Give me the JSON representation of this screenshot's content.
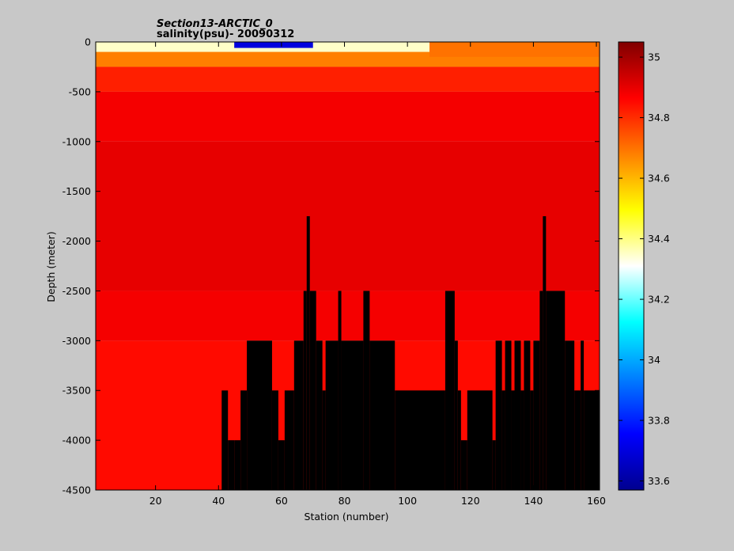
{
  "chart_data": {
    "type": "heatmap",
    "title": "Section13-ARCTIC_0",
    "subtitle": "salinity(psu)- 20090312",
    "xlabel": "Station (number)",
    "ylabel": "Depth (meter)",
    "xlim": [
      1,
      161
    ],
    "ylim": [
      -4500,
      0
    ],
    "xticks": [
      20,
      40,
      60,
      80,
      100,
      120,
      140,
      160
    ],
    "yticks": [
      0,
      -500,
      -1000,
      -1500,
      -2000,
      -2500,
      -3000,
      -3500,
      -4000,
      -4500
    ],
    "colorbar": {
      "ticks": [
        35,
        34.8,
        34.6,
        34.4,
        34.2,
        34,
        33.8,
        33.6
      ],
      "range": [
        33.57,
        35.05
      ],
      "colormap": "jet"
    },
    "layers": [
      {
        "depth_from": 0,
        "depth_to": -100,
        "salinity": 34.35
      },
      {
        "depth_from": -100,
        "depth_to": -250,
        "salinity": 34.68
      },
      {
        "depth_from": -250,
        "depth_to": -500,
        "salinity": 34.82
      },
      {
        "depth_from": -500,
        "depth_to": -1000,
        "salinity": 34.88
      },
      {
        "depth_from": -1000,
        "depth_to": -2500,
        "salinity": 34.9
      },
      {
        "depth_from": -2500,
        "depth_to": -3000,
        "salinity": 34.88
      },
      {
        "depth_from": -3000,
        "depth_to": -4500,
        "salinity": 34.85
      }
    ],
    "surface_minimum": {
      "station_range": [
        45,
        70
      ],
      "salinity": 33.7
    },
    "surface_high_east": {
      "station_range": [
        107,
        161
      ],
      "salinity": 34.7
    },
    "bathymetry_max_depth_by_station": [
      [
        1,
        -4500
      ],
      [
        40,
        -4500
      ],
      [
        41,
        -3500
      ],
      [
        43,
        -4000
      ],
      [
        45,
        -4000
      ],
      [
        47,
        -3500
      ],
      [
        49,
        -3000
      ],
      [
        57,
        -3500
      ],
      [
        59,
        -4000
      ],
      [
        61,
        -3500
      ],
      [
        64,
        -3000
      ],
      [
        67,
        -2500
      ],
      [
        68,
        -1750
      ],
      [
        69,
        -2500
      ],
      [
        71,
        -3000
      ],
      [
        73,
        -3500
      ],
      [
        74,
        -3000
      ],
      [
        78,
        -2500
      ],
      [
        79,
        -3000
      ],
      [
        86,
        -2500
      ],
      [
        88,
        -3000
      ],
      [
        96,
        -3500
      ],
      [
        112,
        -2500
      ],
      [
        115,
        -3000
      ],
      [
        116,
        -3500
      ],
      [
        117,
        -4000
      ],
      [
        119,
        -3500
      ],
      [
        127,
        -4000
      ],
      [
        128,
        -3000
      ],
      [
        130,
        -3500
      ],
      [
        131,
        -3000
      ],
      [
        133,
        -3500
      ],
      [
        134,
        -3000
      ],
      [
        136,
        -3500
      ],
      [
        137,
        -3000
      ],
      [
        139,
        -3500
      ],
      [
        140,
        -3000
      ],
      [
        142,
        -2500
      ],
      [
        143,
        -1750
      ],
      [
        144,
        -2500
      ],
      [
        150,
        -3000
      ],
      [
        153,
        -3500
      ],
      [
        155,
        -3000
      ],
      [
        156,
        -3500
      ],
      [
        161,
        -3500
      ]
    ]
  }
}
